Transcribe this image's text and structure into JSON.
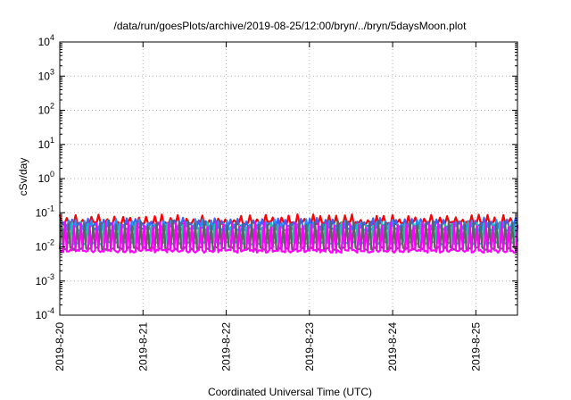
{
  "chart_data": {
    "type": "line",
    "title": "/data/run/goesPlots/archive/2019-08-25/12:00/bryn/../bryn/5daysMoon.plot",
    "xlabel": "Coordinated Universal Time (UTC)",
    "ylabel": "cSv/day",
    "yscale": "log",
    "ylim": [
      0.0001,
      10000
    ],
    "xlim": [
      0,
      5.5
    ],
    "x_ticks": [
      {
        "x": 0,
        "label": "2019-8-20"
      },
      {
        "x": 1,
        "label": "2019-8-21"
      },
      {
        "x": 2,
        "label": "2019-8-22"
      },
      {
        "x": 3,
        "label": "2019-8-23"
      },
      {
        "x": 4,
        "label": "2019-8-24"
      },
      {
        "x": 5,
        "label": "2019-8-25"
      }
    ],
    "y_ticks": [
      {
        "exp": "-4"
      },
      {
        "exp": "-3"
      },
      {
        "exp": "-2"
      },
      {
        "exp": "-1"
      },
      {
        "exp": "0"
      },
      {
        "exp": "1"
      },
      {
        "exp": "2"
      },
      {
        "exp": "3"
      },
      {
        "exp": "4"
      }
    ],
    "grid": true,
    "series": [
      {
        "color": "#ff0000",
        "baseline": 0.05,
        "spike": 0.075
      },
      {
        "color": "#3f5fff",
        "baseline": 0.04,
        "spike": 0.06
      },
      {
        "color": "#1e90ff",
        "baseline": 0.032,
        "spike": 0.055
      },
      {
        "color": "#20c0a0",
        "baseline": 0.013,
        "spike": 0.045
      },
      {
        "color": "#606060",
        "baseline": 0.009,
        "spike": 0.05
      },
      {
        "color": "#ff00ff",
        "baseline": 0.0075,
        "spike": 0.045
      }
    ]
  }
}
